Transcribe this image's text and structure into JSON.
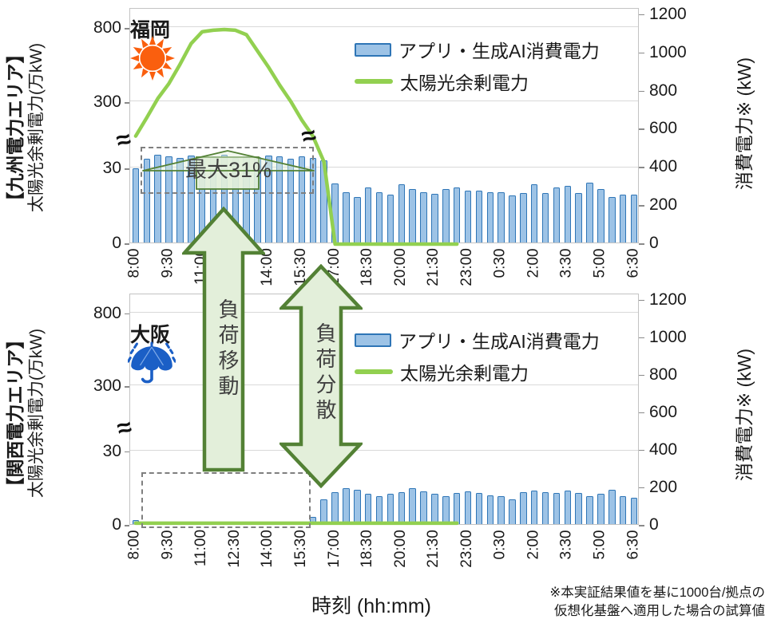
{
  "x_axis_title": "時刻 (hh:mm)",
  "footnote": {
    "line1": "※本実証結果値を基に1000台/拠点の",
    "line2": "仮想化基盤へ適用した場合の試算値"
  },
  "annotations": {
    "max_label": "最大31%",
    "load_shift": "負荷移動",
    "load_balance": "負荷分散"
  },
  "colors": {
    "bar_fill": "#9DC3E6",
    "bar_border": "#2E75B6",
    "line_green": "#92D050",
    "arrow_fill": "#E3EFDA",
    "arrow_border": "#538135",
    "dashed_box": "#7f7f7f",
    "sun_orange": "#FA5F0E",
    "umbrella_blue": "#1B5FC6"
  },
  "charts": [
    {
      "id": "kyushu",
      "area_label": "【九州電力エリア】",
      "left_axis_title": "太陽光余剰電力(万kW)",
      "right_axis_title": "消費電力※ (kW)",
      "city": "福岡",
      "weather": "sunny",
      "legend": {
        "bars": "アプリ・生成AI消費電力",
        "line": "太陽光余剰電力"
      },
      "chart_data": {
        "type": "bar+line",
        "x": [
          "8:00",
          "8:30",
          "9:00",
          "9:30",
          "10:00",
          "10:30",
          "11:00",
          "11:30",
          "12:00",
          "12:30",
          "13:00",
          "13:30",
          "14:00",
          "14:30",
          "15:00",
          "15:30",
          "16:00",
          "16:30",
          "17:00",
          "17:30",
          "18:00",
          "18:30",
          "19:00",
          "19:30",
          "20:00",
          "20:30",
          "21:00",
          "21:30",
          "22:00",
          "22:30",
          "23:00",
          "23:30",
          "0:00",
          "0:30",
          "1:00",
          "1:30",
          "2:00",
          "2:30",
          "3:00",
          "3:30",
          "4:00",
          "4:30",
          "5:00",
          "5:30",
          "6:00",
          "6:30"
        ],
        "x_tick_labels": [
          "8:00",
          "9:30",
          "11:00",
          "12:30",
          "14:00",
          "15:30",
          "17:00",
          "18:30",
          "20:00",
          "21:30",
          "23:00",
          "0:30",
          "2:00",
          "3:30",
          "5:00",
          "6:30"
        ],
        "left_axis": {
          "ticks": [
            0,
            30,
            300,
            800
          ],
          "broken": true,
          "unit": "万kW"
        },
        "right_axis": {
          "ticks": [
            0,
            200,
            400,
            600,
            800,
            1000,
            1200
          ],
          "unit": "kW"
        },
        "series": [
          {
            "name": "アプリ・生成AI消費電力",
            "type": "bar",
            "axis": "right",
            "values": [
              390,
              440,
              458,
              450,
              445,
              455,
              430,
              450,
              458,
              442,
              450,
              448,
              455,
              450,
              440,
              452,
              445,
              430,
              310,
              265,
              240,
              290,
              265,
              250,
              305,
              280,
              265,
              255,
              280,
              290,
              270,
              270,
              265,
              265,
              245,
              260,
              305,
              260,
              290,
              295,
              260,
              315,
              280,
              240,
              250,
              250
            ]
          },
          {
            "name": "太陽光余剰電力",
            "type": "line",
            "axis": "left",
            "values": [
              165,
              240,
              330,
              430,
              560,
              700,
              780,
              790,
              795,
              790,
              760,
              650,
              540,
              420,
              310,
              230,
              165,
              60,
              0,
              0,
              0,
              0,
              0,
              0,
              0,
              0,
              0,
              0,
              0,
              0,
              null,
              null,
              null,
              null,
              null,
              null,
              null,
              null,
              null,
              null,
              null,
              null,
              null,
              null,
              null,
              null
            ]
          }
        ]
      }
    },
    {
      "id": "kansai",
      "area_label": "【関西電力エリア】",
      "left_axis_title": "太陽光余剰電力(万kW)",
      "right_axis_title": "消費電力※ (kW)",
      "city": "大阪",
      "weather": "rainy",
      "legend": {
        "bars": "アプリ・生成AI消費電力",
        "line": "太陽光余剰電力"
      },
      "chart_data": {
        "type": "bar+line",
        "x": [
          "8:00",
          "8:30",
          "9:00",
          "9:30",
          "10:00",
          "10:30",
          "11:00",
          "11:30",
          "12:00",
          "12:30",
          "13:00",
          "13:30",
          "14:00",
          "14:30",
          "15:00",
          "15:30",
          "16:00",
          "16:30",
          "17:00",
          "17:30",
          "18:00",
          "18:30",
          "19:00",
          "19:30",
          "20:00",
          "20:30",
          "21:00",
          "21:30",
          "22:00",
          "22:30",
          "23:00",
          "23:30",
          "0:00",
          "0:30",
          "1:00",
          "1:30",
          "2:00",
          "2:30",
          "3:00",
          "3:30",
          "4:00",
          "4:30",
          "5:00",
          "5:30",
          "6:00",
          "6:30"
        ],
        "x_tick_labels": [
          "8:00",
          "9:30",
          "11:00",
          "12:30",
          "14:00",
          "15:30",
          "17:00",
          "18:30",
          "20:00",
          "21:30",
          "23:00",
          "0:30",
          "2:00",
          "3:30",
          "5:00",
          "6:30"
        ],
        "left_axis": {
          "ticks": [
            0,
            30,
            300,
            800
          ],
          "broken": true,
          "unit": "万kW"
        },
        "right_axis": {
          "ticks": [
            0,
            200,
            400,
            600,
            800,
            1000,
            1200
          ],
          "unit": "kW"
        },
        "series": [
          {
            "name": "アプリ・生成AI消費電力",
            "type": "bar",
            "axis": "right",
            "values": [
              20,
              8,
              8,
              8,
              6,
              2,
              8,
              10,
              8,
              6,
              8,
              4,
              8,
              8,
              6,
              8,
              40,
              130,
              170,
              190,
              185,
              160,
              150,
              160,
              170,
              190,
              175,
              160,
              150,
              165,
              175,
              165,
              155,
              150,
              130,
              170,
              180,
              170,
              165,
              180,
              165,
              150,
              160,
              185,
              150,
              140
            ]
          },
          {
            "name": "太陽光余剰電力",
            "type": "line",
            "axis": "left",
            "values": [
              1,
              1,
              1,
              1,
              1,
              1,
              1,
              1,
              1,
              1,
              1,
              1,
              1,
              1,
              1,
              1,
              1,
              1,
              1,
              1,
              1,
              1,
              1,
              1,
              1,
              1,
              1,
              1,
              1,
              1,
              null,
              null,
              null,
              null,
              null,
              null,
              null,
              null,
              null,
              null,
              null,
              null,
              null,
              null,
              null,
              null
            ]
          }
        ]
      }
    }
  ]
}
